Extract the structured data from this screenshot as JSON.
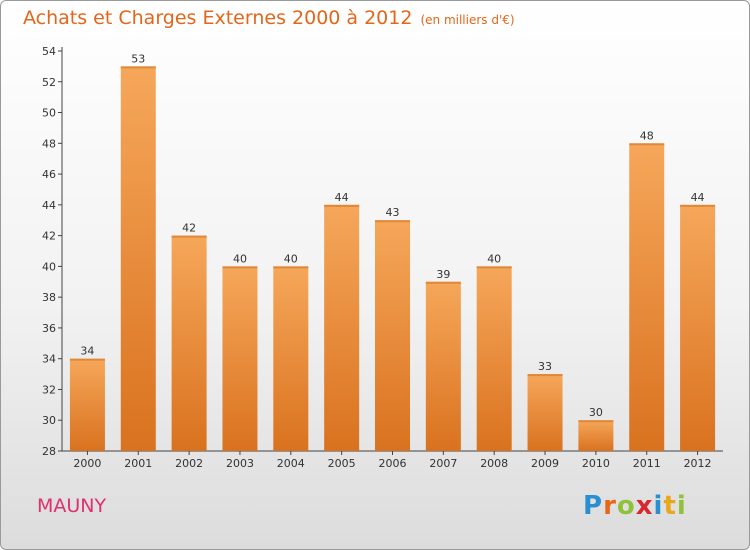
{
  "title": "Achats et Charges Externes 2000 à 2012",
  "subtitle": "(en milliers d'€)",
  "commune": "MAUNY",
  "brand": {
    "letters": [
      "P",
      "r",
      "o",
      "x",
      "i",
      "t",
      "i"
    ],
    "colors": [
      "#2a8fd0",
      "#e8661b",
      "#8fc23a",
      "#d7282f",
      "#2a8fd0",
      "#e8a81b",
      "#8fc23a"
    ]
  },
  "colors": {
    "bar_top": "#f6a75a",
    "bar_bottom": "#d9721f",
    "title": "#e4661a",
    "commune": "#df2f6e"
  },
  "chart_data": {
    "type": "bar",
    "title": "Achats et Charges Externes 2000 à 2012",
    "subtitle": "(en milliers d'€)",
    "categories": [
      "2000",
      "2001",
      "2002",
      "2003",
      "2004",
      "2005",
      "2006",
      "2007",
      "2008",
      "2009",
      "2010",
      "2011",
      "2012"
    ],
    "values": [
      34,
      53,
      42,
      40,
      40,
      44,
      43,
      39,
      40,
      33,
      30,
      48,
      44
    ],
    "ylim": [
      28,
      54
    ],
    "yticks": [
      28,
      30,
      32,
      34,
      36,
      38,
      40,
      42,
      44,
      46,
      48,
      50,
      52,
      54
    ],
    "xlabel": "",
    "ylabel": "",
    "grid": false
  }
}
